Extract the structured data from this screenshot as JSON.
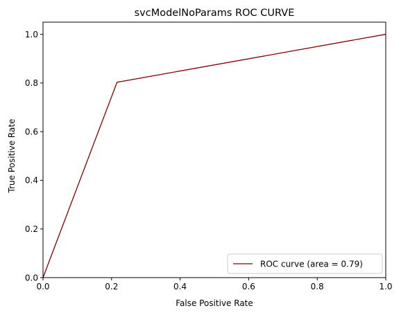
{
  "chart_data": {
    "type": "line",
    "title": "svcModelNoParams ROC CURVE",
    "xlabel": "False Positive Rate",
    "ylabel": "True Positive Rate",
    "xlim": [
      0.0,
      1.0
    ],
    "ylim": [
      0.0,
      1.05
    ],
    "xticks": [
      0.0,
      0.2,
      0.4,
      0.6,
      0.8,
      1.0
    ],
    "xtick_labels": [
      "0.0",
      "0.2",
      "0.4",
      "0.6",
      "0.8",
      "1.0"
    ],
    "yticks": [
      0.0,
      0.2,
      0.4,
      0.6,
      0.8,
      1.0
    ],
    "ytick_labels": [
      "0.0",
      "0.2",
      "0.4",
      "0.6",
      "0.8",
      "1.0"
    ],
    "grid": false,
    "legend_position": "lower-right",
    "series": [
      {
        "name": "ROC curve (area = 0.79)",
        "color": "#800000",
        "x": [
          0.0,
          0.216,
          1.0
        ],
        "y": [
          0.0,
          0.803,
          1.0
        ]
      }
    ]
  }
}
